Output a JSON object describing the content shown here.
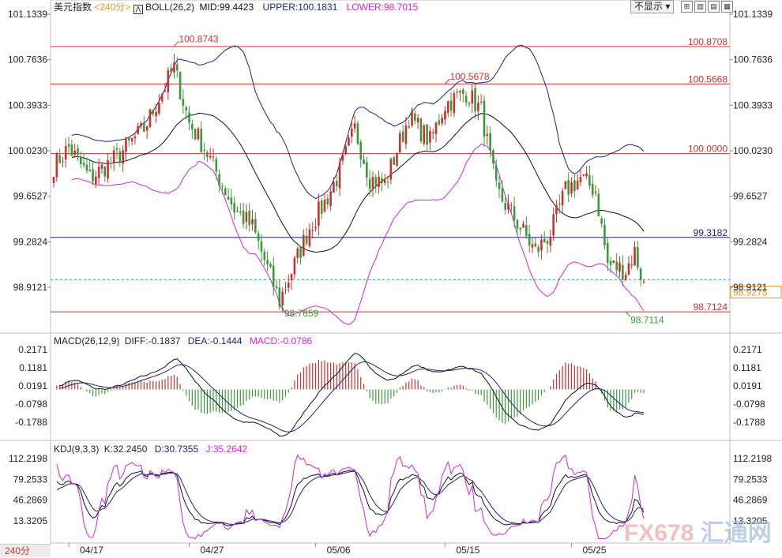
{
  "header": {
    "symbol": "美元指数",
    "period": "<240分>",
    "indicator": "BOLL(26,2)",
    "mid": "MID:99.4423",
    "upper": "UPPER:100.1831",
    "lower": "LOWER:98.7015",
    "hide_button": "不显示"
  },
  "macd": {
    "title": "MACD(26,12,9)",
    "diff": "DIFF:-0.1837",
    "dea": "DEA:-0.1444",
    "macd": "MACD:-0.0786"
  },
  "kdj": {
    "title": "KDJ(9,3,3)",
    "k": "K:32.2450",
    "d": "D:30.7355",
    "j": "J:35.2642"
  },
  "period_tab": "240分",
  "watermark": "FX678",
  "watermark_cn": "汇通网",
  "colors": {
    "up": "#c8322f",
    "down": "#3a9a3a",
    "upper_band": "#1a237e",
    "mid_band": "#111111",
    "lower_band": "#d426d4",
    "hline": "#c8322f",
    "hline_blue": "#1a237e"
  },
  "chart_data": {
    "type": "candlestick",
    "main_axis_ticks": [
      "101.1339",
      "100.7636",
      "100.3933",
      "100.0230",
      "99.6527",
      "99.2824",
      "98.9121"
    ],
    "main_ylim": [
      98.65,
      101.15
    ],
    "horizontal_lines": [
      {
        "value": 100.8708,
        "label": "100.8708"
      },
      {
        "value": 100.5668,
        "label": "100.5668"
      },
      {
        "value": 100.0,
        "label": "100.0000"
      },
      {
        "value": 99.3182,
        "label": "99.3182"
      },
      {
        "value": 98.7124,
        "label": "98.7124"
      }
    ],
    "current_price": {
      "value": 98.9275,
      "label": "98.9275"
    },
    "annotations": [
      {
        "label": "100.8743",
        "value": 100.8743,
        "index": 40
      },
      {
        "label": "100.5678",
        "value": 100.5678,
        "index": 130
      },
      {
        "label": "98.7659",
        "value": 98.7659,
        "index": 75
      },
      {
        "label": "98.7114",
        "value": 98.7114,
        "index": 190
      }
    ],
    "x_tick_labels": [
      {
        "label": "04/17",
        "index": 5
      },
      {
        "label": "04/27",
        "index": 45
      },
      {
        "label": "05/06",
        "index": 87
      },
      {
        "label": "05/15",
        "index": 130
      },
      {
        "label": "05/25",
        "index": 172
      }
    ],
    "close_keypoints": [
      [
        0,
        99.9
      ],
      [
        5,
        100.05
      ],
      [
        12,
        99.8
      ],
      [
        20,
        99.95
      ],
      [
        30,
        100.2
      ],
      [
        40,
        100.7
      ],
      [
        45,
        100.25
      ],
      [
        50,
        100.05
      ],
      [
        55,
        99.8
      ],
      [
        60,
        99.55
      ],
      [
        66,
        99.4
      ],
      [
        72,
        99.0
      ],
      [
        75,
        98.8
      ],
      [
        80,
        99.1
      ],
      [
        85,
        99.4
      ],
      [
        90,
        99.6
      ],
      [
        95,
        99.85
      ],
      [
        100,
        100.2
      ],
      [
        105,
        99.8
      ],
      [
        110,
        99.75
      ],
      [
        118,
        100.3
      ],
      [
        125,
        100.1
      ],
      [
        130,
        100.4
      ],
      [
        137,
        100.5
      ],
      [
        142,
        100.35
      ],
      [
        147,
        99.7
      ],
      [
        155,
        99.4
      ],
      [
        160,
        99.2
      ],
      [
        165,
        99.35
      ],
      [
        170,
        99.7
      ],
      [
        175,
        99.8
      ],
      [
        180,
        99.7
      ],
      [
        184,
        99.1
      ],
      [
        190,
        99.05
      ],
      [
        193,
        99.2
      ],
      [
        196,
        98.93
      ]
    ],
    "macd_axis_ticks": [
      "0.2171",
      "0.1181",
      "0.0191",
      "-0.0798",
      "-0.1788"
    ],
    "macd_ylim": [
      -0.24,
      0.27
    ],
    "kdj_axis_ticks": [
      "112.2198",
      "79.2533",
      "46.2869",
      "13.3205"
    ],
    "kdj_ylim": [
      -20,
      125
    ]
  }
}
